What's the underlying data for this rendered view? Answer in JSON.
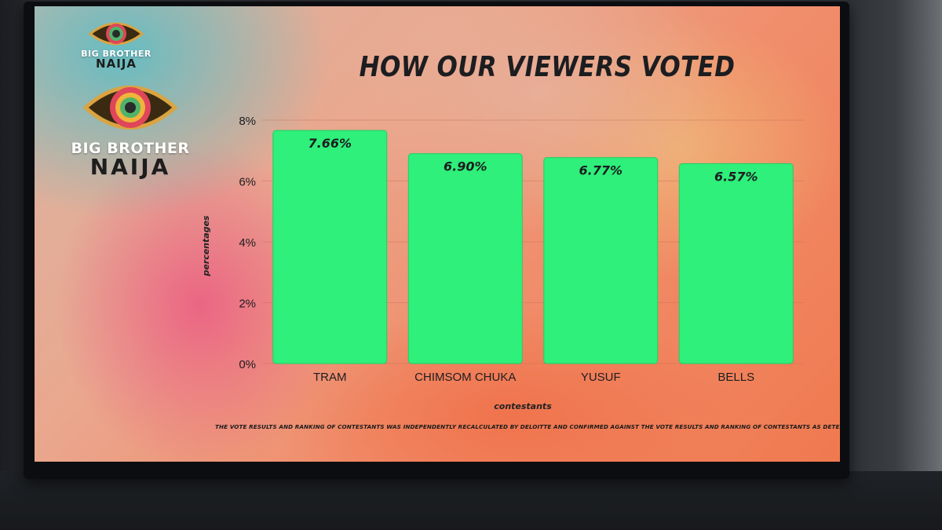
{
  "branding": {
    "logo_small_line1": "BIG BROTHER",
    "logo_small_line2": "NAIJA",
    "logo_large_line1": "BIG BROTHER",
    "logo_large_line2": "NAIJA"
  },
  "chart_data": {
    "type": "bar",
    "title": "HOW OUR VIEWERS VOTED",
    "categories": [
      "TRAM",
      "CHIMSOM CHUKA",
      "YUSUF",
      "BELLS"
    ],
    "values": [
      7.66,
      6.9,
      6.77,
      6.57
    ],
    "data_labels": [
      "7.66%",
      "6.90%",
      "6.77%",
      "6.57%"
    ],
    "xlabel": "contestants",
    "ylabel": "percentages",
    "ylim": [
      0,
      8
    ],
    "yticks": [
      0,
      2,
      4,
      6,
      8
    ],
    "ytick_labels": [
      "0%",
      "2%",
      "4%",
      "6%",
      "8%"
    ],
    "grid": true,
    "colors": {
      "bar": "#2ef07a",
      "bar_stroke": "#1fcf63",
      "text": "#1c1d20",
      "grid": "#c86e58"
    }
  },
  "footnote": "THE VOTE RESULTS AND RANKING OF CONTESTANTS WAS INDEPENDENTLY RECALCULATED BY DELOITTE AND CONFIRMED AGAINST THE VOTE RESULTS AND RANKING OF CONTESTANTS AS DETERMINED BY MULTICHOICE."
}
